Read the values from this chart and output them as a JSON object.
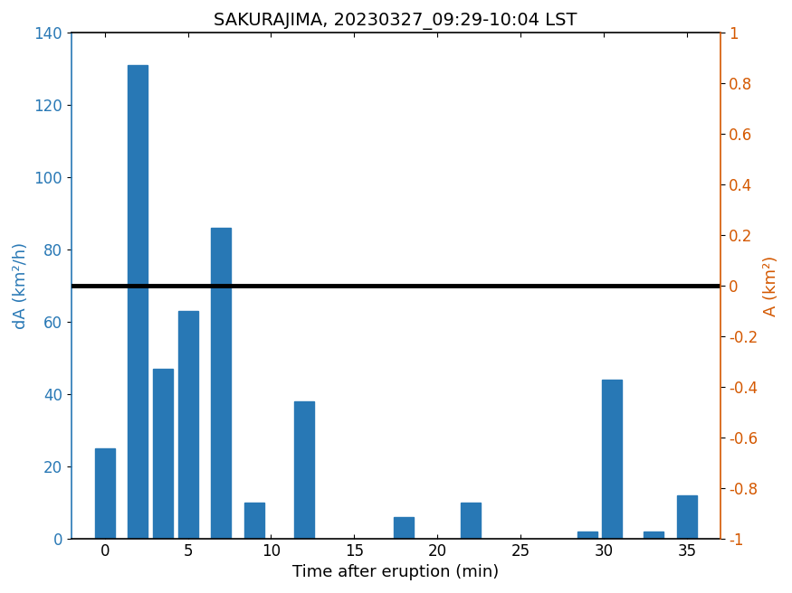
{
  "title": "SAKURAJIMA, 20230327_09:29-10:04 LST",
  "xlabel": "Time after eruption (min)",
  "ylabel_left": "dA (km²/h)",
  "ylabel_right": "A (km²)",
  "bar_positions": [
    0,
    2,
    3.5,
    5,
    7,
    9,
    12,
    18,
    22,
    29,
    30.5,
    33,
    35
  ],
  "bar_heights": [
    25,
    131,
    47,
    63,
    86,
    10,
    38,
    6,
    10,
    2,
    44,
    2,
    12
  ],
  "bar_width": 1.2,
  "bar_color": "#2878b5",
  "hline_y": 70,
  "hline_color": "black",
  "hline_linewidth": 3.5,
  "xlim": [
    -2,
    37
  ],
  "ylim_left": [
    0,
    140
  ],
  "ylim_right": [
    -1,
    1
  ],
  "xticks": [
    0,
    5,
    10,
    15,
    20,
    25,
    30,
    35
  ],
  "yticks_left": [
    0,
    20,
    40,
    60,
    80,
    100,
    120,
    140
  ],
  "yticks_right": [
    -1,
    -0.8,
    -0.6,
    -0.4,
    -0.2,
    0,
    0.2,
    0.4,
    0.6,
    0.8,
    1
  ],
  "ytick_right_labels": [
    "-1",
    "-0.8",
    "-0.6",
    "-0.4",
    "-0.2",
    "0",
    "0.2",
    "0.4",
    "0.6",
    "0.8",
    "1"
  ],
  "left_axis_color": "#2878b5",
  "right_axis_color": "#d45800",
  "title_fontsize": 14,
  "label_fontsize": 13,
  "tick_fontsize": 12,
  "spine_linewidth": 1.2
}
